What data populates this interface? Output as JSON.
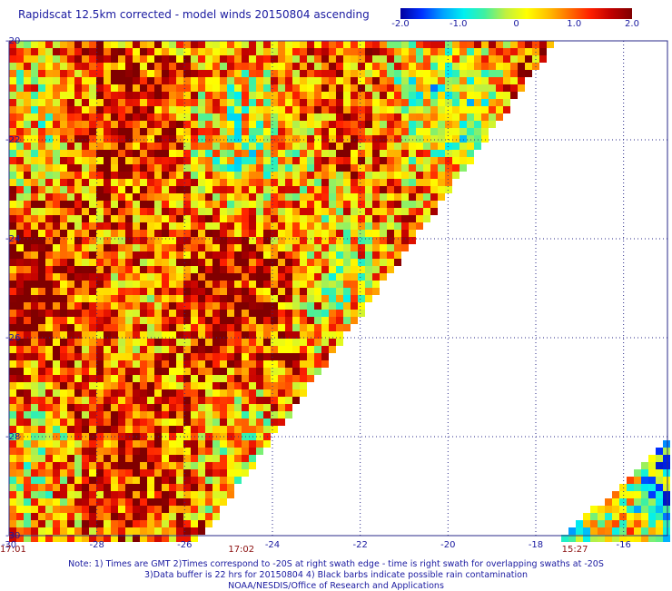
{
  "title": "Rapidscat 12.5km corrected - model winds 20150804 ascending",
  "colorbar": {
    "min": -2.0,
    "max": 2.0,
    "labels": [
      "-2.0",
      "-1.0",
      "0",
      "1.0",
      "2.0"
    ],
    "label_values": [
      -2.0,
      -1.0,
      0,
      1.0,
      2.0
    ],
    "colors": [
      "#0000a0",
      "#0030ff",
      "#00a0ff",
      "#00f0f0",
      "#40f0a0",
      "#c0f040",
      "#ffff00",
      "#ffc000",
      "#ff7000",
      "#ff2000",
      "#c00000",
      "#800000"
    ]
  },
  "axes": {
    "lon_range": [
      -30,
      -15
    ],
    "lat_range": [
      -30,
      -20
    ],
    "x_ticks": [
      -30,
      -28,
      -26,
      -24,
      -22,
      -20,
      -18,
      -16
    ],
    "x_tick_labels": [
      "-30",
      "-28",
      "-26",
      "-24",
      "-22",
      "-20",
      "-18",
      "-16"
    ],
    "y_ticks": [
      -20,
      -22,
      -24,
      -26,
      -28,
      -30
    ],
    "y_tick_labels": [
      "-20",
      "-22",
      "-24",
      "-26",
      "-28",
      "-30"
    ],
    "grid": "dotted"
  },
  "swath_times": [
    {
      "label": "17:01",
      "lon": -30
    },
    {
      "label": "17:02",
      "lon": -24.8
    },
    {
      "label": "15:27",
      "lon": -17.2
    }
  ],
  "notes": [
    "Note: 1) Times are GMT 2)Times correspond to -20S at right swath edge - time is right swath for overlapping swaths at -20S",
    "3)Data buffer is 22 hrs for 20150804 4) Black barbs indicate possible rain contamination",
    "NOAA/NESDIS/Office of Research and Applications"
  ]
}
